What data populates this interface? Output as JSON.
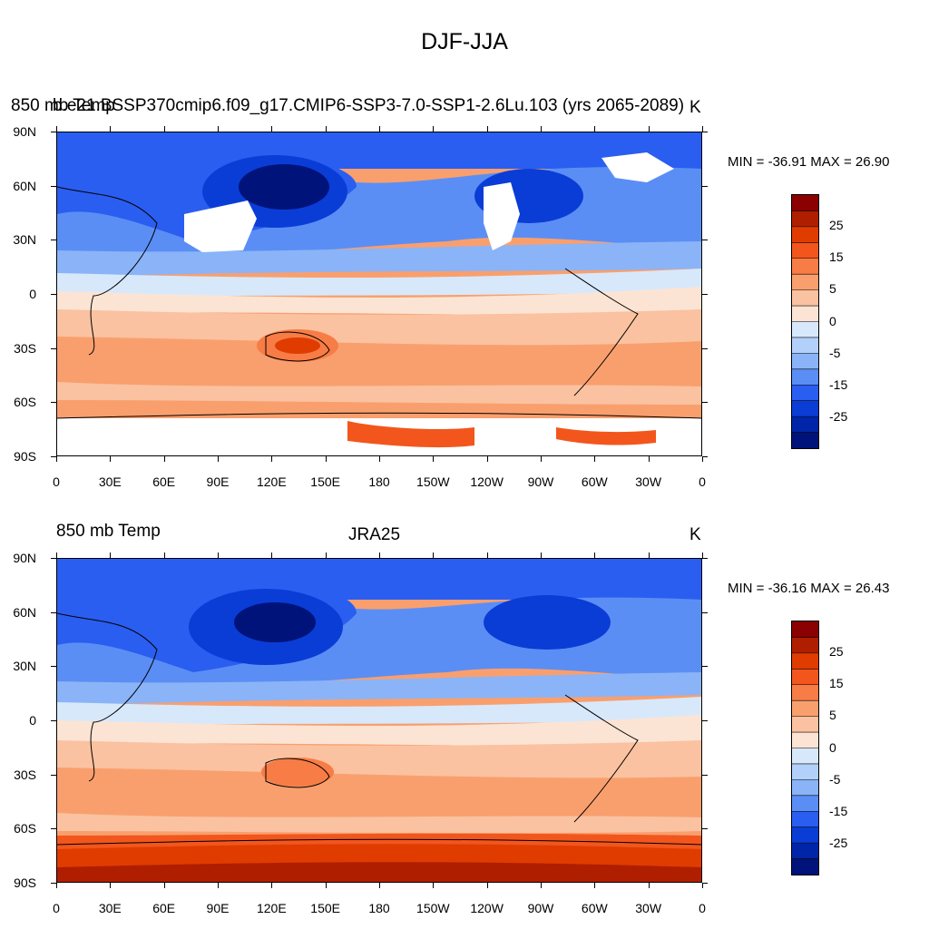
{
  "title": "DJF-JJA",
  "panels": [
    {
      "left_title": "850 mb Temp",
      "center_title": "b.e21.BSSP370cmip6.f09_g17.CMIP6-SSP3-7.0-SSP1-2.6Lu.103 (yrs 2065-2089)",
      "units": "K",
      "minmax": "MIN = -36.91 MAX =  26.90"
    },
    {
      "left_title": "850 mb Temp",
      "center_title": "JRA25",
      "units": "K",
      "minmax": "MIN = -36.16 MAX =  26.43"
    }
  ],
  "lat_labels": [
    "90N",
    "60N",
    "30N",
    "0",
    "30S",
    "60S",
    "90S"
  ],
  "lon_labels": [
    "0",
    "30E",
    "60E",
    "90E",
    "120E",
    "150E",
    "180",
    "150W",
    "120W",
    "90W",
    "60W",
    "30W",
    "0"
  ],
  "colorbar": {
    "labels": [
      "25",
      "15",
      "5",
      "0",
      "-5",
      "-15",
      "-25"
    ],
    "colors": [
      "#8b0000",
      "#b01e00",
      "#e03c00",
      "#f2561d",
      "#f77c45",
      "#f99f6e",
      "#fac2a0",
      "#fce4d4",
      "#d8e8fb",
      "#b2d0fa",
      "#8ab4f7",
      "#5b8ef5",
      "#2a5ef0",
      "#0a3dd6",
      "#0025a8",
      "#00137a"
    ]
  }
}
